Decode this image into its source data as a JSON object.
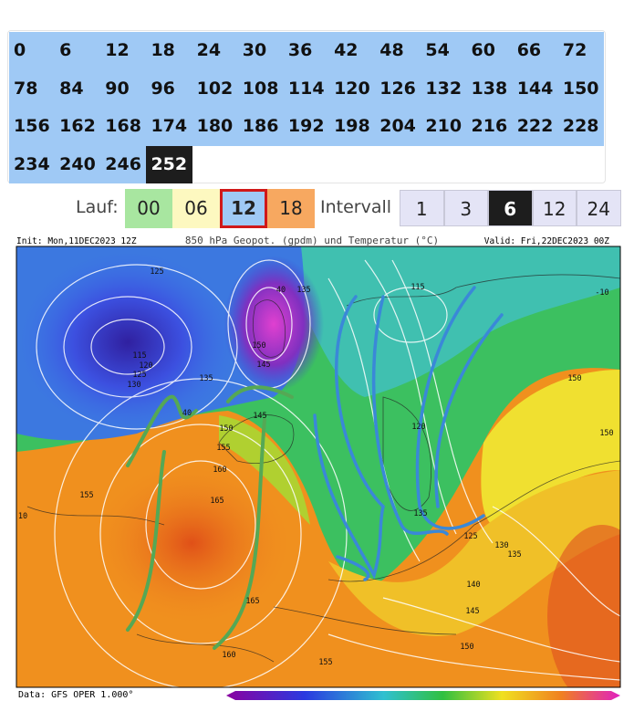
{
  "hours": {
    "items": [
      "0",
      "6",
      "12",
      "18",
      "24",
      "30",
      "36",
      "42",
      "48",
      "54",
      "60",
      "66",
      "72",
      "78",
      "84",
      "90",
      "96",
      "102",
      "108",
      "114",
      "120",
      "126",
      "132",
      "138",
      "144",
      "150",
      "156",
      "162",
      "168",
      "174",
      "180",
      "186",
      "192",
      "198",
      "204",
      "210",
      "216",
      "222",
      "228",
      "234",
      "240",
      "246",
      "252"
    ],
    "selected": 42
  },
  "run": {
    "label": "Lauf:",
    "options": [
      "00",
      "06",
      "12",
      "18"
    ],
    "selected": 2
  },
  "interval": {
    "label": "Intervall",
    "options": [
      "1",
      "3",
      "6",
      "12",
      "24"
    ],
    "selected": 2
  },
  "map": {
    "init": "Init: Mon,11DEC2023 12Z",
    "title": "850 hPa Geopot. (gpdm) und Temperatur (°C)",
    "valid": "Valid: Fri,22DEC2023 00Z",
    "contour_labels": [
      "125",
      "115",
      "120",
      "125",
      "130",
      "135",
      "40",
      "40",
      "135",
      "150",
      "145",
      "145",
      "150",
      "155",
      "160",
      "165",
      "155",
      "165",
      "160",
      "155",
      "115",
      "120",
      "135",
      "125",
      "130",
      "135",
      "140",
      "145",
      "150",
      "150",
      "150",
      "-10",
      "10"
    ]
  },
  "footer": {
    "data": "Data: GFS OPER 1.000°"
  }
}
